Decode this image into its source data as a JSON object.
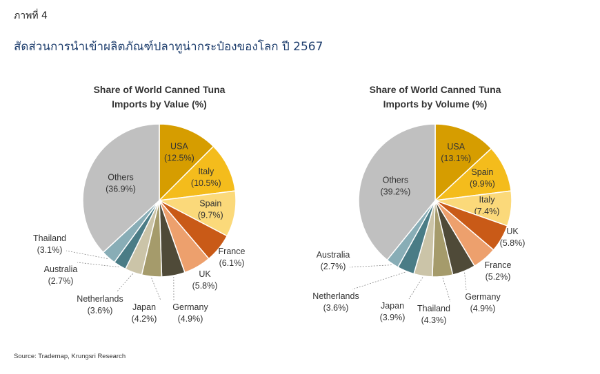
{
  "figure_label": "ภาพที่ 4",
  "figure_title": "สัดส่วนการนำเข้าผลิตภัณฑ์ปลาทูน่ากระป๋องของโลก ปี 2567",
  "source": "Source: Trademap, Krungsri Research",
  "chart_data": [
    {
      "type": "pie",
      "title": "Share of World Canned Tuna Imports by Value (%)",
      "title_lines": [
        "Share of World Canned Tuna",
        "Imports by Value (%)"
      ],
      "slices": [
        {
          "label": "USA",
          "value": 12.5,
          "value_text": "(12.5%)",
          "color": "#d69d00"
        },
        {
          "label": "Italy",
          "value": 10.5,
          "value_text": "(10.5%)",
          "color": "#f4bc1c"
        },
        {
          "label": "Spain",
          "value": 9.7,
          "value_text": "(9.7%)",
          "color": "#fbd97a"
        },
        {
          "label": "France",
          "value": 6.1,
          "value_text": "(6.1%)",
          "color": "#c95a17"
        },
        {
          "label": "UK",
          "value": 5.8,
          "value_text": "(5.8%)",
          "color": "#eda06d"
        },
        {
          "label": "Germany",
          "value": 4.9,
          "value_text": "(4.9%)",
          "color": "#4f4a38"
        },
        {
          "label": "Japan",
          "value": 4.2,
          "value_text": "(4.2%)",
          "color": "#a59b6b"
        },
        {
          "label": "Netherlands",
          "value": 3.6,
          "value_text": "(3.6%)",
          "color": "#cbc4a8"
        },
        {
          "label": "Australia",
          "value": 2.7,
          "value_text": "(2.7%)",
          "color": "#4a7c86"
        },
        {
          "label": "Thailand",
          "value": 3.1,
          "value_text": "(3.1%)",
          "color": "#88adb6"
        },
        {
          "label": "Others",
          "value": 36.9,
          "value_text": "(36.9%)",
          "color": "#c0c0c0"
        }
      ]
    },
    {
      "type": "pie",
      "title": "Share of World Canned Tuna Imports by Volume (%)",
      "title_lines": [
        "Share of World Canned Tuna",
        "Imports by Volume (%)"
      ],
      "slices": [
        {
          "label": "USA",
          "value": 13.1,
          "value_text": "(13.1%)",
          "color": "#d69d00"
        },
        {
          "label": "Spain",
          "value": 9.9,
          "value_text": "(9.9%)",
          "color": "#f4bc1c"
        },
        {
          "label": "Italy",
          "value": 7.4,
          "value_text": "(7.4%)",
          "color": "#fbd97a"
        },
        {
          "label": "UK",
          "value": 5.8,
          "value_text": "(5.8%)",
          "color": "#c95a17"
        },
        {
          "label": "France",
          "value": 5.2,
          "value_text": "(5.2%)",
          "color": "#eda06d"
        },
        {
          "label": "Germany",
          "value": 4.9,
          "value_text": "(4.9%)",
          "color": "#4f4a38"
        },
        {
          "label": "Thailand",
          "value": 4.3,
          "value_text": "(4.3%)",
          "color": "#a59b6b"
        },
        {
          "label": "Japan",
          "value": 3.9,
          "value_text": "(3.9%)",
          "color": "#cbc4a8"
        },
        {
          "label": "Netherlands",
          "value": 3.6,
          "value_text": "(3.6%)",
          "color": "#4a7c86"
        },
        {
          "label": "Australia",
          "value": 2.7,
          "value_text": "(2.7%)",
          "color": "#88adb6"
        },
        {
          "label": "Others",
          "value": 39.2,
          "value_text": "(39.2%)",
          "color": "#c0c0c0"
        }
      ]
    }
  ]
}
